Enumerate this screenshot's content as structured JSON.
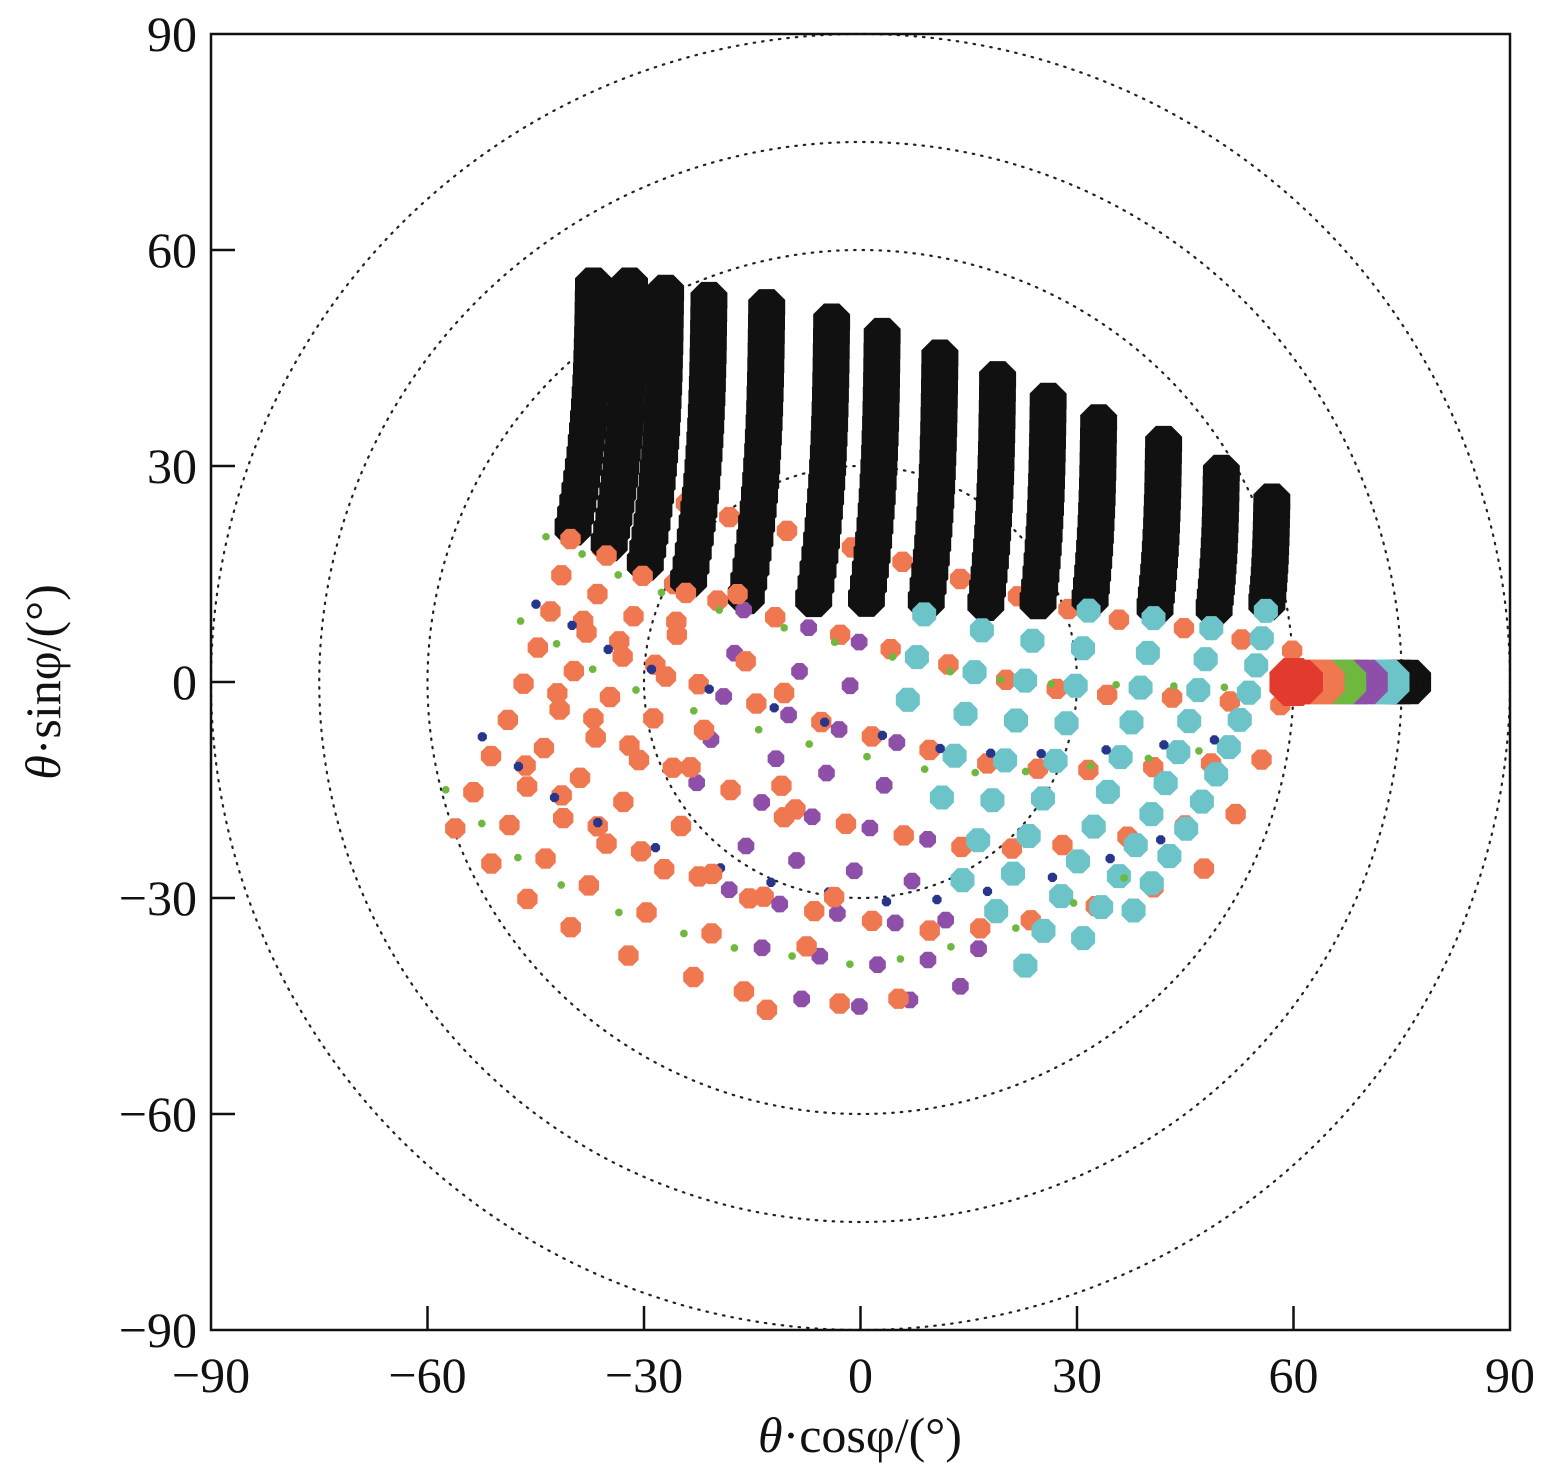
{
  "chart_data": {
    "type": "scatter",
    "title": "",
    "xlabel_symbol": "θ",
    "xlabel_rest": "·cosφ/(°)",
    "ylabel_symbol": "θ",
    "ylabel_rest": "·sinφ/(°)",
    "xlim": [
      -90,
      90
    ],
    "ylim": [
      -90,
      90
    ],
    "xticks": [
      -90,
      -60,
      -30,
      0,
      30,
      60,
      90
    ],
    "yticks": [
      -90,
      -60,
      -30,
      0,
      30,
      60,
      90
    ],
    "tick_labels_x": [
      "−90",
      "−60",
      "−30",
      "0",
      "30",
      "60",
      "90"
    ],
    "tick_labels_y": [
      "−90",
      "−60",
      "−30",
      "0",
      "30",
      "60",
      "90"
    ],
    "reference_circles_deg": [
      30,
      60,
      75,
      90
    ],
    "grid": false,
    "legend": "none",
    "series_colors": {
      "black": "#111111",
      "orange": "#f07850",
      "cyan": "#6cc4c8",
      "purple": "#8e4fa8",
      "green": "#6fb83f",
      "navy": "#27358a",
      "red": "#e23a2c"
    },
    "scan_focus": {
      "x": 60,
      "y": 0,
      "color": "#e23a2c"
    },
    "pattern": {
      "rows": 14,
      "row_start_x": [
        -37,
        -32,
        -27,
        -21,
        -13,
        -4,
        3,
        11,
        19,
        26,
        33,
        42,
        50,
        57
      ],
      "row_top_y": [
        55,
        55,
        54,
        53,
        52,
        50,
        48,
        45,
        42,
        39,
        36,
        33,
        29,
        25
      ],
      "row_bottom_y": [
        -22,
        -27,
        -32,
        -36,
        -40,
        -43,
        -45,
        -46,
        -47,
        -46,
        -44,
        -41,
        -37,
        -33
      ]
    }
  }
}
